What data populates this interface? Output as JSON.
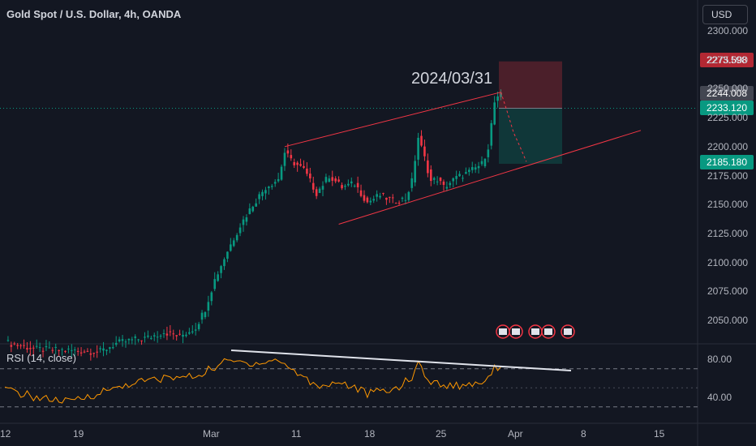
{
  "header": {
    "title": "Gold Spot / U.S. Dollar, 4h, OANDA"
  },
  "currency": {
    "label": "USD"
  },
  "annotation": {
    "date": "2024/03/31"
  },
  "price_tags": {
    "stop": "2273.598",
    "last": "2244.008",
    "entry": "2233.120",
    "target": "2185.180"
  },
  "price_axis": [
    "2300.000",
    "2275.000",
    "2250.000",
    "2225.000",
    "2200.000",
    "2175.000",
    "2150.000",
    "2125.000",
    "2100.000",
    "2075.000",
    "2050.000"
  ],
  "rsi_axis": [
    "80.00",
    "40.00"
  ],
  "time_axis": [
    "12",
    "19",
    "Mar",
    "11",
    "18",
    "25",
    "Apr",
    "8",
    "15"
  ],
  "rsi": {
    "title": "RSI (14, close)"
  },
  "colors": {
    "bg": "#131722",
    "up": "#089981",
    "down": "#f23645",
    "rsi": "#ff9800",
    "channel": "#f23645",
    "tl": "#e0e3eb"
  },
  "chart_data": {
    "type": "candlestick",
    "title": "Gold Spot / U.S. Dollar, 4h, OANDA",
    "xlabel": "",
    "ylabel": "",
    "ylim": [
      2025,
      2310
    ],
    "close_series": [
      {
        "i": 0,
        "close": 2031
      },
      {
        "i": 10,
        "close": 2025
      },
      {
        "i": 20,
        "close": 2024
      },
      {
        "i": 30,
        "close": 2023
      },
      {
        "i": 35,
        "close": 2030
      },
      {
        "i": 40,
        "close": 2033
      },
      {
        "i": 45,
        "close": 2035
      },
      {
        "i": 50,
        "close": 2040
      },
      {
        "i": 55,
        "close": 2036
      },
      {
        "i": 60,
        "close": 2044
      },
      {
        "i": 63,
        "close": 2060
      },
      {
        "i": 66,
        "close": 2085
      },
      {
        "i": 70,
        "close": 2110
      },
      {
        "i": 74,
        "close": 2132
      },
      {
        "i": 78,
        "close": 2150
      },
      {
        "i": 82,
        "close": 2165
      },
      {
        "i": 86,
        "close": 2172
      },
      {
        "i": 88,
        "close": 2195
      },
      {
        "i": 90,
        "close": 2188
      },
      {
        "i": 94,
        "close": 2180
      },
      {
        "i": 98,
        "close": 2160
      },
      {
        "i": 102,
        "close": 2175
      },
      {
        "i": 106,
        "close": 2165
      },
      {
        "i": 110,
        "close": 2168
      },
      {
        "i": 114,
        "close": 2152
      },
      {
        "i": 118,
        "close": 2158
      },
      {
        "i": 122,
        "close": 2153
      },
      {
        "i": 126,
        "close": 2155
      },
      {
        "i": 128,
        "close": 2170
      },
      {
        "i": 130,
        "close": 2208
      },
      {
        "i": 132,
        "close": 2190
      },
      {
        "i": 134,
        "close": 2170
      },
      {
        "i": 136,
        "close": 2172
      },
      {
        "i": 138,
        "close": 2165
      },
      {
        "i": 142,
        "close": 2173
      },
      {
        "i": 146,
        "close": 2178
      },
      {
        "i": 150,
        "close": 2185
      },
      {
        "i": 152,
        "close": 2200
      },
      {
        "i": 154,
        "close": 2238
      },
      {
        "i": 156,
        "close": 2244
      }
    ],
    "rsi": {
      "ylim": [
        20,
        90
      ],
      "overbought": 70,
      "oversold": 30,
      "values": [
        {
          "i": 0,
          "v": 48
        },
        {
          "i": 10,
          "v": 40
        },
        {
          "i": 20,
          "v": 35
        },
        {
          "i": 30,
          "v": 45
        },
        {
          "i": 40,
          "v": 55
        },
        {
          "i": 50,
          "v": 60
        },
        {
          "i": 60,
          "v": 62
        },
        {
          "i": 66,
          "v": 72
        },
        {
          "i": 70,
          "v": 78
        },
        {
          "i": 78,
          "v": 76
        },
        {
          "i": 86,
          "v": 79
        },
        {
          "i": 90,
          "v": 70
        },
        {
          "i": 98,
          "v": 52
        },
        {
          "i": 106,
          "v": 56
        },
        {
          "i": 114,
          "v": 44
        },
        {
          "i": 122,
          "v": 48
        },
        {
          "i": 128,
          "v": 60
        },
        {
          "i": 130,
          "v": 76
        },
        {
          "i": 134,
          "v": 55
        },
        {
          "i": 142,
          "v": 52
        },
        {
          "i": 150,
          "v": 56
        },
        {
          "i": 154,
          "v": 70
        },
        {
          "i": 156,
          "v": 75
        }
      ]
    },
    "annotations": [
      {
        "type": "text",
        "text": "2024/03/31"
      },
      {
        "type": "channel_upper",
        "from": [
          88,
          2200
        ],
        "to": [
          156,
          2247
        ]
      },
      {
        "type": "channel_lower",
        "from": [
          105,
          2133
        ],
        "to": [
          200,
          2214
        ]
      },
      {
        "type": "position_short",
        "entry": 2233.12,
        "stop": 2273.598,
        "target": 2185.18
      }
    ]
  }
}
